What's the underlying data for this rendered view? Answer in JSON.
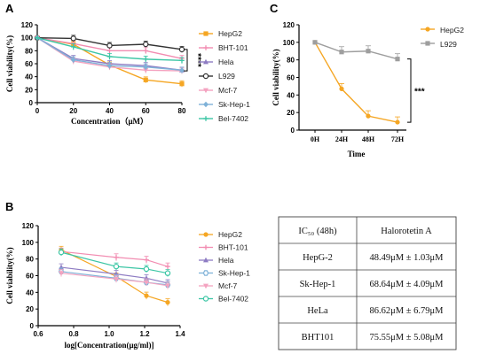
{
  "colors": {
    "HepG2": "#f5a623",
    "BHT-101": "#f28cb1",
    "Hela": "#8e7cc3",
    "L929": "#333333",
    "Mcf-7": "#f4a3c0",
    "Sk-Hep-1": "#7fb2d8",
    "Bel-7402": "#3cc6a5",
    "L929_C": "#9e9e9e"
  },
  "chart_data": [
    {
      "panel": "A",
      "type": "line",
      "xlabel": "Concentration（μM）",
      "ylabel": "Cell viability(%)",
      "xlim": [
        0,
        80
      ],
      "ylim": [
        0,
        120
      ],
      "xticks": [
        "0",
        "20",
        "40",
        "60",
        "80"
      ],
      "yticks": [
        "0",
        "20",
        "40",
        "60",
        "80",
        "100",
        "120"
      ],
      "x": [
        0,
        20,
        40,
        60,
        80
      ],
      "series": [
        {
          "name": "HepG2",
          "values": [
            100,
            90,
            58,
            35,
            29
          ]
        },
        {
          "name": "BHT-101",
          "values": [
            100,
            91,
            80,
            80,
            68
          ]
        },
        {
          "name": "Hela",
          "values": [
            100,
            68,
            60,
            57,
            50
          ]
        },
        {
          "name": "L929",
          "values": [
            100,
            99,
            88,
            90,
            82
          ]
        },
        {
          "name": "Mcf-7",
          "values": [
            100,
            64,
            55,
            50,
            49
          ]
        },
        {
          "name": "Sk-Hep-1",
          "values": [
            100,
            66,
            57,
            55,
            50
          ]
        },
        {
          "name": "Bel-7402",
          "values": [
            100,
            86,
            71,
            67,
            65
          ]
        }
      ],
      "annotation": "****"
    },
    {
      "panel": "C",
      "type": "line",
      "xlabel": "Time",
      "ylabel": "Cell viability(%)",
      "ylim": [
        0,
        120
      ],
      "yticks": [
        "0",
        "20",
        "40",
        "60",
        "80",
        "100",
        "120"
      ],
      "categories": [
        "0H",
        "24H",
        "48H",
        "72H"
      ],
      "series": [
        {
          "name": "HepG2",
          "values": [
            100,
            47,
            16,
            9
          ]
        },
        {
          "name": "L929",
          "values": [
            100,
            89,
            90,
            81
          ]
        }
      ],
      "annotation": "***"
    },
    {
      "panel": "B",
      "type": "scatter",
      "xlabel": "log[Concentration(μg/ml)]",
      "ylabel": "Cell viability(%)",
      "xlim": [
        0.6,
        1.4
      ],
      "ylim": [
        0,
        120
      ],
      "xticks": [
        "0.6",
        "0.8",
        "1.0",
        "1.2",
        "1.4"
      ],
      "yticks": [
        "0",
        "20",
        "40",
        "60",
        "80",
        "100",
        "120"
      ],
      "x": [
        0.73,
        1.04,
        1.21,
        1.33
      ],
      "series": [
        {
          "name": "HepG2",
          "values": [
            91,
            59,
            36,
            28
          ]
        },
        {
          "name": "BHT-101",
          "values": [
            89,
            82,
            79,
            71
          ]
        },
        {
          "name": "Hela",
          "values": [
            70,
            62,
            57,
            51
          ]
        },
        {
          "name": "Sk-Hep-1",
          "values": [
            65,
            57,
            52,
            49
          ]
        },
        {
          "name": "Mcf-7",
          "values": [
            63,
            56,
            52,
            48
          ]
        },
        {
          "name": "Bel-7402",
          "values": [
            88,
            71,
            68,
            63
          ]
        }
      ]
    },
    {
      "panel": "B-table",
      "type": "table",
      "header": [
        "IC₅₀ (48h)",
        "Halorotetin A"
      ],
      "rows": [
        [
          "HepG-2",
          "48.49μM ± 1.03μM"
        ],
        [
          "Sk-Hep-1",
          "68.64μM ± 4.09μM"
        ],
        [
          "HeLa",
          "86.62μM ± 6.79μM"
        ],
        [
          "BHT101",
          "75.55μM ± 5.08μM"
        ]
      ]
    }
  ],
  "labels": {
    "panelA": "A",
    "panelB": "B",
    "panelC": "C"
  }
}
